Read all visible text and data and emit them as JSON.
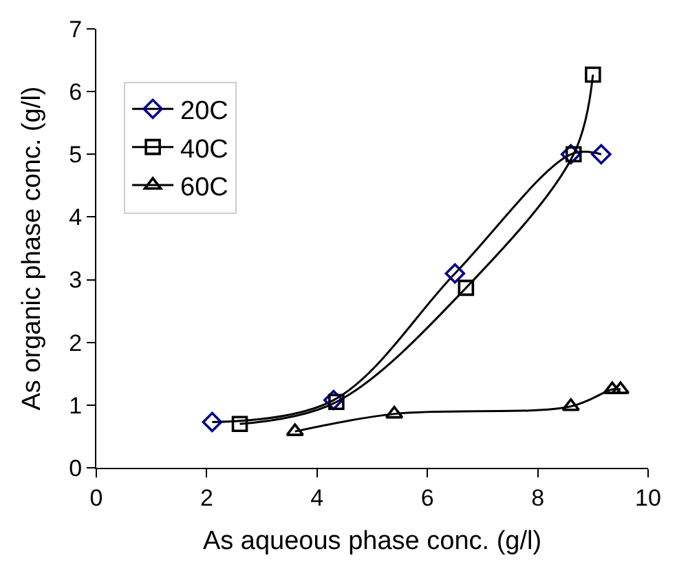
{
  "chart_data": {
    "type": "line",
    "xlabel": "As aqueous phase conc. (g/l)",
    "ylabel": "As organic phase conc. (g/l)",
    "xlim": [
      0,
      10
    ],
    "xticks": [
      0,
      2,
      4,
      6,
      8,
      10
    ],
    "ylim": [
      0,
      7
    ],
    "yticks": [
      0,
      1,
      2,
      3,
      4,
      5,
      6,
      7
    ],
    "legend": "top left",
    "series": [
      {
        "name": "20C",
        "color": "#000000",
        "colors": [
          "#00008b",
          "#00008b",
          "#00008b",
          "#00008b",
          "#00008b"
        ],
        "marker": "diamond",
        "x": [
          2.1,
          4.3,
          6.5,
          8.6,
          9.15
        ],
        "values": [
          0.73,
          1.08,
          3.1,
          5.0,
          5.0
        ]
      },
      {
        "name": "40C",
        "color": "#000000",
        "marker": "square",
        "x": [
          2.6,
          4.35,
          6.7,
          8.65,
          9.0
        ],
        "values": [
          0.7,
          1.05,
          2.87,
          5.0,
          6.27
        ]
      },
      {
        "name": "60C",
        "color": "#000000",
        "marker": "triangle",
        "x": [
          3.6,
          5.4,
          8.6,
          9.35,
          9.5
        ],
        "values": [
          0.58,
          0.86,
          0.98,
          1.25,
          1.25
        ]
      }
    ]
  }
}
